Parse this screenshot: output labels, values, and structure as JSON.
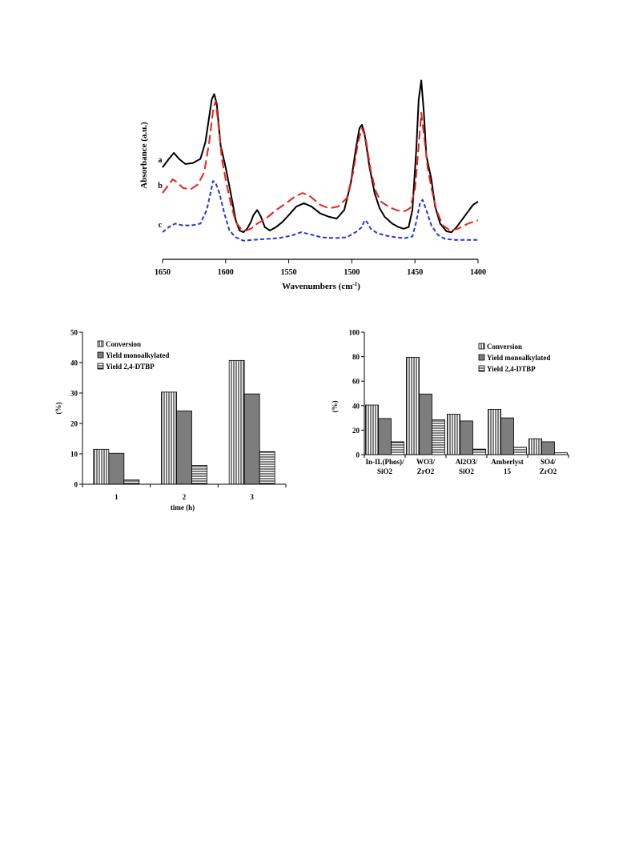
{
  "chart_data": [
    {
      "type": "line",
      "xlabel": "Wavenumbers (cm",
      "xlabel_sup": "-1",
      "xlabel_end": ")",
      "ylabel": "Absorbance (a.u.)",
      "xlim": [
        1650,
        1400
      ],
      "x_ticks": [
        "1650",
        "1600",
        "1550",
        "1500",
        "1450",
        "1400"
      ],
      "grid": false,
      "series": [
        {
          "name": "a",
          "color": "#000000",
          "dash": "solid",
          "points": [
            [
              1650,
              0.45
            ],
            [
              1645,
              0.5
            ],
            [
              1641,
              0.535
            ],
            [
              1637,
              0.5
            ],
            [
              1632,
              0.47
            ],
            [
              1626,
              0.475
            ],
            [
              1620,
              0.5
            ],
            [
              1616,
              0.6
            ],
            [
              1613,
              0.75
            ],
            [
              1611,
              0.85
            ],
            [
              1609,
              0.88
            ],
            [
              1607,
              0.82
            ],
            [
              1604,
              0.58
            ],
            [
              1600,
              0.45
            ],
            [
              1596,
              0.3
            ],
            [
              1592,
              0.14
            ],
            [
              1589,
              0.08
            ],
            [
              1586,
              0.07
            ],
            [
              1583,
              0.09
            ],
            [
              1580,
              0.13
            ],
            [
              1578,
              0.17
            ],
            [
              1575,
              0.2
            ],
            [
              1572,
              0.16
            ],
            [
              1569,
              0.1
            ],
            [
              1565,
              0.08
            ],
            [
              1560,
              0.1
            ],
            [
              1555,
              0.13
            ],
            [
              1550,
              0.17
            ],
            [
              1544,
              0.22
            ],
            [
              1538,
              0.24
            ],
            [
              1532,
              0.22
            ],
            [
              1525,
              0.18
            ],
            [
              1518,
              0.16
            ],
            [
              1512,
              0.15
            ],
            [
              1506,
              0.2
            ],
            [
              1501,
              0.35
            ],
            [
              1497,
              0.55
            ],
            [
              1494,
              0.68
            ],
            [
              1492,
              0.7
            ],
            [
              1490,
              0.65
            ],
            [
              1486,
              0.45
            ],
            [
              1482,
              0.3
            ],
            [
              1478,
              0.21
            ],
            [
              1474,
              0.16
            ],
            [
              1468,
              0.12
            ],
            [
              1463,
              0.1
            ],
            [
              1459,
              0.09
            ],
            [
              1455,
              0.1
            ],
            [
              1452,
              0.2
            ],
            [
              1449,
              0.55
            ],
            [
              1447,
              0.85
            ],
            [
              1445,
              0.96
            ],
            [
              1443,
              0.78
            ],
            [
              1441,
              0.52
            ],
            [
              1439,
              0.45
            ],
            [
              1437,
              0.38
            ],
            [
              1434,
              0.22
            ],
            [
              1430,
              0.12
            ],
            [
              1425,
              0.075
            ],
            [
              1421,
              0.07
            ],
            [
              1417,
              0.1
            ],
            [
              1410,
              0.17
            ],
            [
              1404,
              0.23
            ],
            [
              1400,
              0.25
            ]
          ]
        },
        {
          "name": "b",
          "color": "#e8211a",
          "dash": "long-dash",
          "points": [
            [
              1650,
              0.3
            ],
            [
              1646,
              0.34
            ],
            [
              1642,
              0.38
            ],
            [
              1638,
              0.36
            ],
            [
              1634,
              0.33
            ],
            [
              1628,
              0.32
            ],
            [
              1622,
              0.35
            ],
            [
              1617,
              0.42
            ],
            [
              1613,
              0.6
            ],
            [
              1610,
              0.78
            ],
            [
              1608,
              0.84
            ],
            [
              1606,
              0.72
            ],
            [
              1603,
              0.5
            ],
            [
              1600,
              0.38
            ],
            [
              1596,
              0.24
            ],
            [
              1592,
              0.13
            ],
            [
              1588,
              0.09
            ],
            [
              1584,
              0.08
            ],
            [
              1580,
              0.09
            ],
            [
              1575,
              0.12
            ],
            [
              1568,
              0.15
            ],
            [
              1560,
              0.2
            ],
            [
              1552,
              0.24
            ],
            [
              1545,
              0.28
            ],
            [
              1539,
              0.3
            ],
            [
              1533,
              0.28
            ],
            [
              1525,
              0.23
            ],
            [
              1518,
              0.21
            ],
            [
              1511,
              0.22
            ],
            [
              1504,
              0.27
            ],
            [
              1499,
              0.42
            ],
            [
              1495,
              0.6
            ],
            [
              1492,
              0.68
            ],
            [
              1489,
              0.62
            ],
            [
              1485,
              0.43
            ],
            [
              1481,
              0.31
            ],
            [
              1477,
              0.25
            ],
            [
              1471,
              0.22
            ],
            [
              1465,
              0.2
            ],
            [
              1459,
              0.19
            ],
            [
              1454,
              0.21
            ],
            [
              1450,
              0.32
            ],
            [
              1447,
              0.58
            ],
            [
              1445,
              0.77
            ],
            [
              1443,
              0.65
            ],
            [
              1440,
              0.45
            ],
            [
              1437,
              0.33
            ],
            [
              1433,
              0.2
            ],
            [
              1428,
              0.11
            ],
            [
              1422,
              0.08
            ],
            [
              1416,
              0.09
            ],
            [
              1408,
              0.12
            ],
            [
              1400,
              0.14
            ]
          ]
        },
        {
          "name": "c",
          "color": "#2337d6",
          "dash": "short-dash",
          "points": [
            [
              1650,
              0.07
            ],
            [
              1645,
              0.1
            ],
            [
              1640,
              0.12
            ],
            [
              1634,
              0.11
            ],
            [
              1627,
              0.11
            ],
            [
              1620,
              0.12
            ],
            [
              1615,
              0.2
            ],
            [
              1612,
              0.3
            ],
            [
              1610,
              0.37
            ],
            [
              1608,
              0.36
            ],
            [
              1605,
              0.3
            ],
            [
              1601,
              0.18
            ],
            [
              1597,
              0.08
            ],
            [
              1592,
              0.04
            ],
            [
              1586,
              0.02
            ],
            [
              1578,
              0.025
            ],
            [
              1568,
              0.03
            ],
            [
              1558,
              0.035
            ],
            [
              1548,
              0.05
            ],
            [
              1540,
              0.07
            ],
            [
              1532,
              0.055
            ],
            [
              1524,
              0.04
            ],
            [
              1514,
              0.035
            ],
            [
              1504,
              0.04
            ],
            [
              1497,
              0.07
            ],
            [
              1492,
              0.1
            ],
            [
              1490,
              0.14
            ],
            [
              1488,
              0.13
            ],
            [
              1485,
              0.09
            ],
            [
              1480,
              0.065
            ],
            [
              1473,
              0.05
            ],
            [
              1465,
              0.04
            ],
            [
              1458,
              0.035
            ],
            [
              1452,
              0.045
            ],
            [
              1449,
              0.13
            ],
            [
              1446,
              0.24
            ],
            [
              1444,
              0.26
            ],
            [
              1441,
              0.2
            ],
            [
              1437,
              0.11
            ],
            [
              1432,
              0.055
            ],
            [
              1426,
              0.03
            ],
            [
              1418,
              0.025
            ],
            [
              1408,
              0.025
            ],
            [
              1400,
              0.025
            ]
          ]
        }
      ]
    },
    {
      "type": "bar",
      "categories": [
        "1",
        "2",
        "3"
      ],
      "xlabel": "time (h)",
      "ylabel": "(%)",
      "ylim": [
        0,
        50
      ],
      "y_ticks": [
        "0",
        "10",
        "20",
        "30",
        "40",
        "50"
      ],
      "legend_position": "top-left",
      "series": [
        {
          "name": "Conversion",
          "pattern": "vertical-lines",
          "values": [
            11.5,
            30.3,
            40.7
          ]
        },
        {
          "name": "Yield monoalkylated",
          "pattern": "solid-gray",
          "values": [
            10.2,
            24.1,
            29.7
          ]
        },
        {
          "name": "Yield 2,4-DTBP",
          "pattern": "horizontal-lines",
          "values": [
            1.4,
            6.2,
            10.7
          ]
        }
      ]
    },
    {
      "type": "bar",
      "categories": [
        [
          "In-IL(Phos)/",
          "SiO2"
        ],
        [
          "WO3/",
          "ZrO2"
        ],
        [
          "Al2O3/",
          "SiO2"
        ],
        [
          "Amberlyst",
          "15"
        ],
        [
          "SO4/",
          "ZrO2"
        ]
      ],
      "xlabel": "",
      "ylabel": "(%)",
      "ylim": [
        0,
        100
      ],
      "y_ticks": [
        "0",
        "20",
        "40",
        "60",
        "80",
        "100"
      ],
      "legend_position": "top-right",
      "series": [
        {
          "name": "Conversion",
          "pattern": "vertical-lines",
          "values": [
            40.5,
            79.5,
            33.0,
            37.0,
            13.0
          ]
        },
        {
          "name": "Yield monoalkylated",
          "pattern": "solid-gray",
          "values": [
            29.5,
            49.5,
            27.5,
            30.0,
            10.5
          ]
        },
        {
          "name": "Yield 2,4-DTBP",
          "pattern": "horizontal-lines",
          "values": [
            10.5,
            28.5,
            4.5,
            6.0,
            1.5
          ]
        }
      ]
    }
  ]
}
